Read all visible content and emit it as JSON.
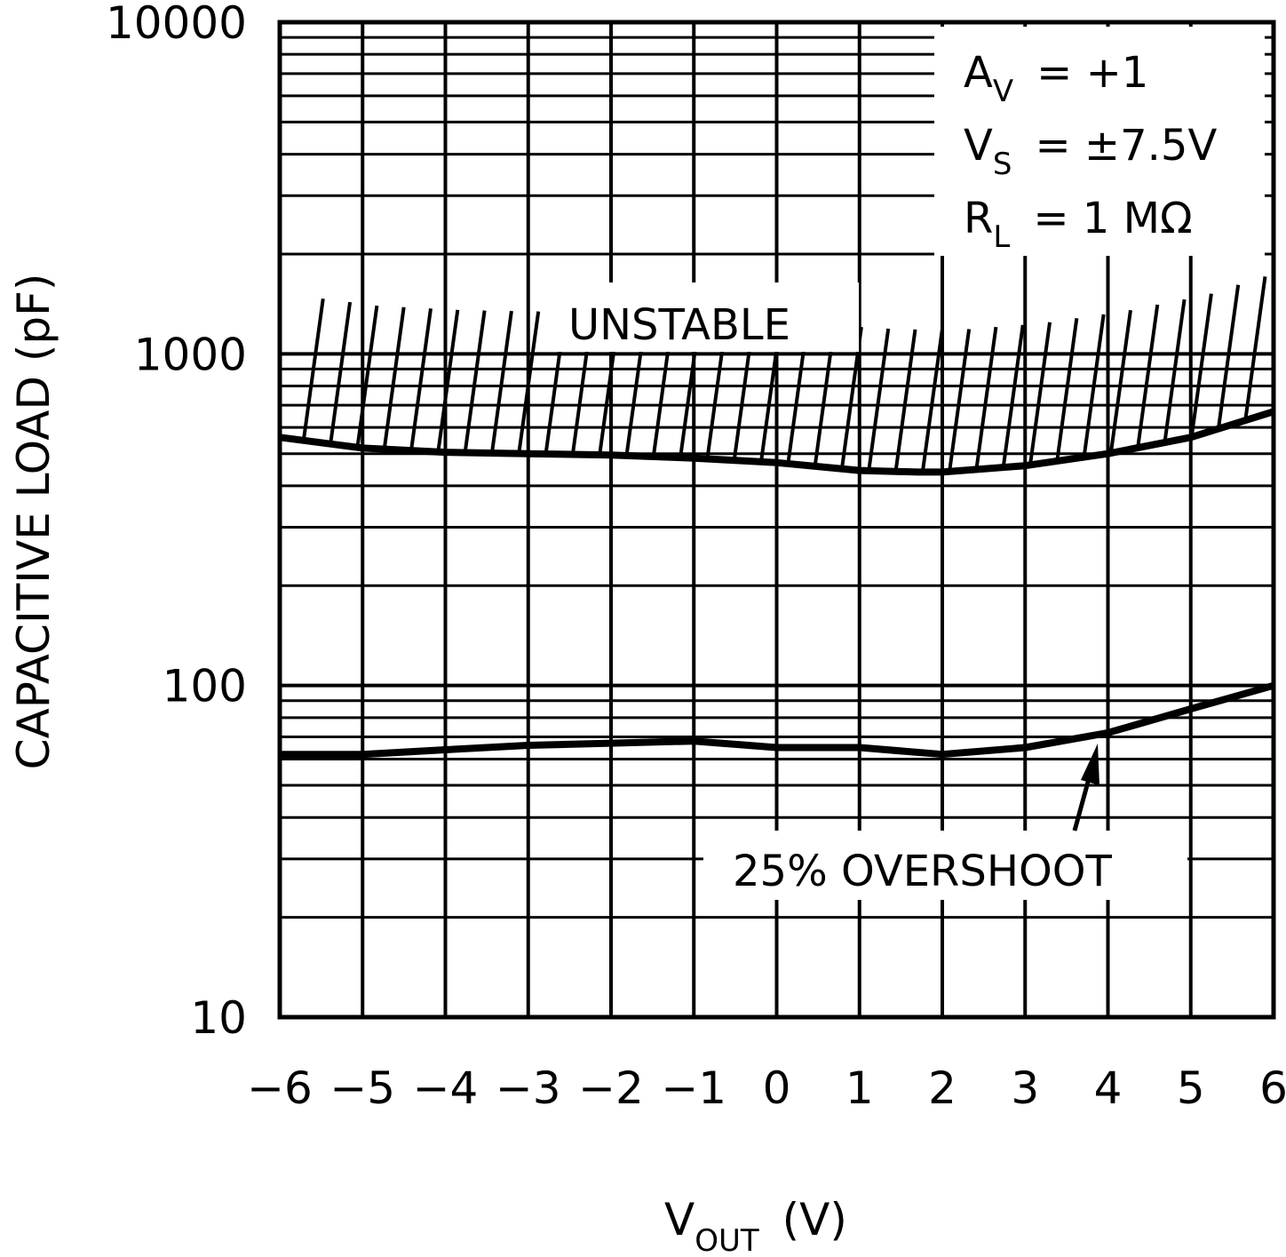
{
  "chart_data": {
    "type": "line",
    "title": "",
    "xlabel": {
      "main": "V",
      "sub": "OUT",
      "unit": "(V)"
    },
    "ylabel": "CAPACITIVE LOAD (pF)",
    "x_scale": "linear",
    "y_scale": "log",
    "xlim": [
      -6,
      6
    ],
    "ylim": [
      10,
      10000
    ],
    "x_ticks": [
      -6,
      -5,
      -4,
      -3,
      -2,
      -1,
      0,
      1,
      2,
      3,
      4,
      5,
      6
    ],
    "x_tick_labels": [
      "−6",
      "−5",
      "−4",
      "−3",
      "−2",
      "−1",
      "0",
      "1",
      "2",
      "3",
      "4",
      "5",
      "6"
    ],
    "y_ticks": [
      10,
      100,
      1000,
      10000
    ],
    "y_tick_labels": [
      "10",
      "100",
      "1000",
      "10000"
    ],
    "grid": true,
    "series": [
      {
        "name": "UNSTABLE",
        "style": "hatched-above",
        "x": [
          -6,
          -5,
          -4,
          -3,
          -2,
          -1,
          0,
          1,
          1.7,
          2,
          3,
          4,
          5,
          6
        ],
        "y": [
          560,
          520,
          505,
          500,
          495,
          485,
          470,
          445,
          440,
          440,
          460,
          500,
          560,
          670
        ]
      },
      {
        "name": "25% OVERSHOOT",
        "style": "solid",
        "x": [
          -6,
          -5,
          -4,
          -3,
          -2,
          -1,
          0,
          1,
          2,
          3,
          4,
          5,
          6
        ],
        "y": [
          62,
          62,
          64,
          66,
          67,
          68,
          65,
          65,
          62,
          65,
          72,
          85,
          100
        ]
      }
    ],
    "annotations": {
      "unstable_label": "UNSTABLE",
      "overshoot_label": "25% OVERSHOOT",
      "conditions": [
        {
          "main": "A",
          "sub": "V",
          "rest": "=  +1"
        },
        {
          "main": "V",
          "sub": "S",
          "rest": "=  ±7.5V"
        },
        {
          "main": "R",
          "sub": "L",
          "rest": "=  1 MΩ"
        }
      ]
    },
    "colors": {
      "line": "#000000",
      "background": "#ffffff"
    }
  }
}
